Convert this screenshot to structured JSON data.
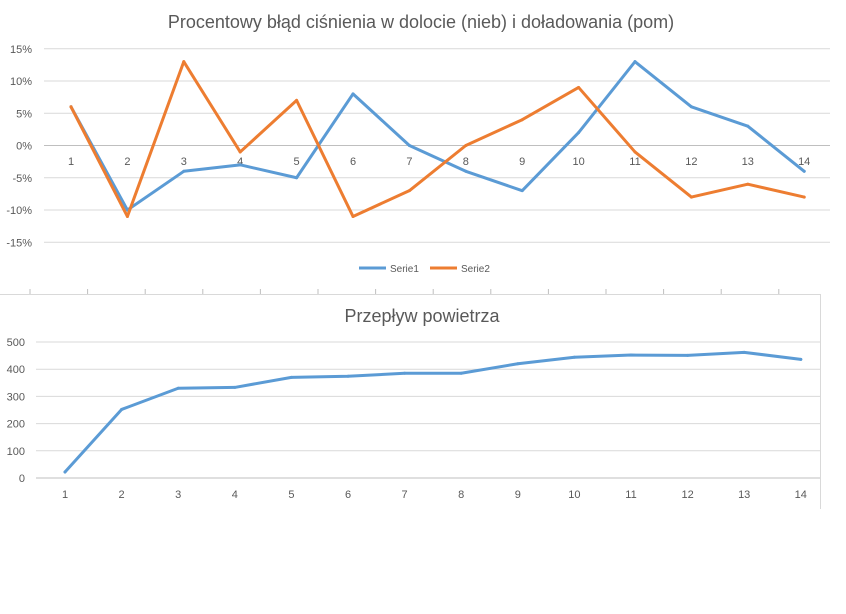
{
  "chart_data": [
    {
      "type": "line",
      "title": "Procentowy błąd ciśnienia w dolocie (nieb) i doładowania (pom)",
      "categories": [
        "1",
        "2",
        "3",
        "4",
        "5",
        "6",
        "7",
        "8",
        "9",
        "10",
        "11",
        "12",
        "13",
        "14"
      ],
      "y_ticks": [
        "15%",
        "10%",
        "5%",
        "0%",
        "-5%",
        "-10%",
        "-15%"
      ],
      "ylim": [
        -15,
        15
      ],
      "grid": true,
      "legend": "bottom",
      "series": [
        {
          "name": "Serie1",
          "color": "#5b9bd5",
          "values": [
            6,
            -10,
            -4,
            -3,
            -5,
            8,
            0,
            -4,
            -7,
            2,
            13,
            6,
            3,
            -4
          ]
        },
        {
          "name": "Serie2",
          "color": "#ed7d31",
          "values": [
            6,
            -11,
            13,
            -1,
            7,
            -11,
            -7,
            0,
            4,
            9,
            -1,
            -8,
            -6,
            -8
          ]
        }
      ]
    },
    {
      "type": "line",
      "title": "Przepływ powietrza",
      "categories": [
        "1",
        "2",
        "3",
        "4",
        "5",
        "6",
        "7",
        "8",
        "9",
        "10",
        "11",
        "12",
        "13",
        "14"
      ],
      "y_ticks": [
        "500",
        "400",
        "300",
        "200",
        "100",
        "0"
      ],
      "ylim": [
        0,
        500
      ],
      "grid": true,
      "series": [
        {
          "color": "#5b9bd5",
          "values": [
            22,
            252,
            330,
            333,
            370,
            374,
            385,
            385,
            420,
            444,
            452,
            451,
            462,
            436
          ]
        }
      ]
    }
  ]
}
